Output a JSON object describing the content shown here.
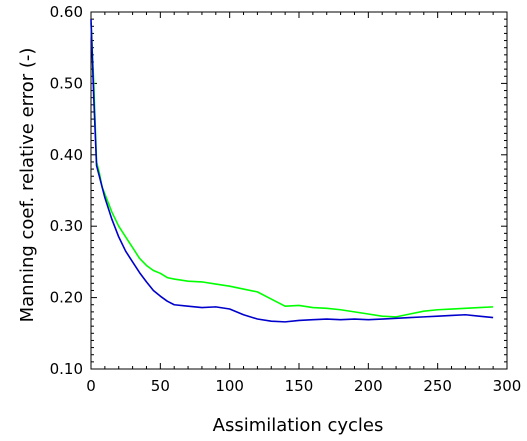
{
  "chart_data": {
    "type": "line",
    "title": "",
    "xlabel": "Assimilation cycles",
    "ylabel": "Manning coef. relative error (-)",
    "xlim": [
      0,
      300
    ],
    "ylim": [
      0.1,
      0.6
    ],
    "xticks": [
      0,
      50,
      100,
      150,
      200,
      250,
      300
    ],
    "xtick_labels": [
      "0",
      "50",
      "100",
      "150",
      "200",
      "250",
      "300"
    ],
    "yticks": [
      0.1,
      0.2,
      0.3,
      0.4,
      0.5,
      0.6
    ],
    "ytick_labels": [
      "0.10",
      "0.20",
      "0.30",
      "0.40",
      "0.50",
      "0.60"
    ],
    "grid": false,
    "legend": "none",
    "series": [
      {
        "color": "#00ff00",
        "x": [
          0,
          2,
          4,
          6,
          8,
          10,
          15,
          20,
          25,
          30,
          35,
          40,
          45,
          50,
          55,
          60,
          70,
          80,
          90,
          100,
          110,
          120,
          130,
          140,
          150,
          160,
          170,
          180,
          190,
          200,
          210,
          220,
          230,
          240,
          250,
          260,
          270,
          280,
          290
        ],
        "y": [
          0.585,
          0.5,
          0.39,
          0.375,
          0.355,
          0.345,
          0.32,
          0.3,
          0.285,
          0.27,
          0.255,
          0.245,
          0.238,
          0.234,
          0.228,
          0.226,
          0.223,
          0.222,
          0.219,
          0.216,
          0.212,
          0.208,
          0.198,
          0.188,
          0.189,
          0.186,
          0.185,
          0.183,
          0.18,
          0.177,
          0.174,
          0.173,
          0.177,
          0.181,
          0.183,
          0.184,
          0.185,
          0.186,
          0.187
        ]
      },
      {
        "color": "#0000cc",
        "x": [
          0,
          2,
          4,
          6,
          8,
          10,
          15,
          20,
          25,
          30,
          35,
          40,
          45,
          50,
          55,
          60,
          70,
          80,
          90,
          100,
          110,
          120,
          130,
          140,
          150,
          160,
          170,
          180,
          190,
          200,
          210,
          220,
          230,
          240,
          250,
          260,
          270,
          280,
          290
        ],
        "y": [
          0.59,
          0.48,
          0.385,
          0.37,
          0.355,
          0.34,
          0.31,
          0.285,
          0.265,
          0.25,
          0.235,
          0.222,
          0.21,
          0.202,
          0.195,
          0.19,
          0.188,
          0.186,
          0.187,
          0.184,
          0.176,
          0.17,
          0.167,
          0.166,
          0.168,
          0.169,
          0.17,
          0.169,
          0.17,
          0.169,
          0.17,
          0.171,
          0.172,
          0.173,
          0.174,
          0.175,
          0.176,
          0.174,
          0.172
        ]
      }
    ]
  }
}
